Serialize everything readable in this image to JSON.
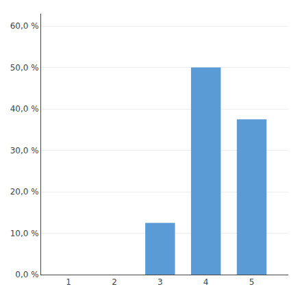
{
  "chart_data": {
    "type": "bar",
    "x": [
      1,
      2,
      3,
      4,
      5
    ],
    "values": [
      0.0,
      0.0,
      12.5,
      50.0,
      37.5
    ],
    "color": "#5B9BD5",
    "xlim": [
      0.4,
      5.8
    ],
    "xticks": [
      1,
      2,
      3,
      4,
      5
    ],
    "ylim": [
      0,
      63
    ],
    "yticks": [
      {
        "value": 0.0,
        "label": "0,0 %"
      },
      {
        "value": 10.0,
        "label": "10,0 %"
      },
      {
        "value": 20.0,
        "label": "20,0 %"
      },
      {
        "value": 30.0,
        "label": "30,0 %"
      },
      {
        "value": 40.0,
        "label": "40,0 %"
      },
      {
        "value": 50.0,
        "label": "50,0 %"
      },
      {
        "value": 60.0,
        "label": "60,0 %"
      }
    ],
    "grid": true
  }
}
